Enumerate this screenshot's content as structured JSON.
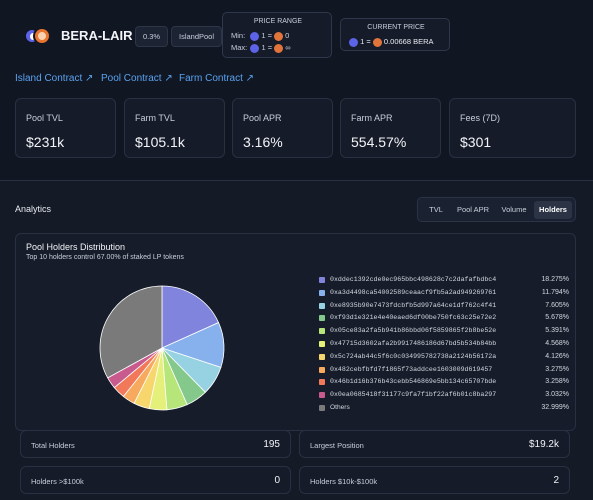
{
  "header": {
    "name": "BERA-LAIR",
    "fee": "0.3%",
    "pool_type": "IslandPool",
    "price_range": {
      "title": "PRICE RANGE",
      "min_label": "Min:",
      "min_value": "1 = ",
      "min_result": "0",
      "max_label": "Max:",
      "max_value": "1 = ",
      "max_result": "∞"
    },
    "current_price": {
      "title": "CURRENT PRICE",
      "value": "1 = ",
      "result": "0.00668 BERA"
    }
  },
  "links": [
    {
      "label": "Island Contract ↗"
    },
    {
      "label": "Pool Contract ↗"
    },
    {
      "label": "Farm Contract ↗"
    }
  ],
  "stats": [
    {
      "label": "Pool TVL",
      "value": "$231k"
    },
    {
      "label": "Farm TVL",
      "value": "$105.1k"
    },
    {
      "label": "Pool APR",
      "value": "3.16%"
    },
    {
      "label": "Farm APR",
      "value": "554.57%"
    },
    {
      "label": "Fees (7D)",
      "value": "$301"
    }
  ],
  "analytics": {
    "title": "Analytics",
    "tabs": [
      {
        "label": "TVL",
        "active": false
      },
      {
        "label": "Pool APR",
        "active": false
      },
      {
        "label": "Volume",
        "active": false
      },
      {
        "label": "Holders",
        "active": true
      }
    ]
  },
  "distribution": {
    "title": "Pool Holders Distribution",
    "subtitle": "Top 10 holders control 67.00% of staked LP tokens"
  },
  "chart_data": {
    "type": "pie",
    "categories": [
      "0xddec1392cde0ec965bbc498628c7c2dafafbdbc4",
      "0xa3d4498ca54002589ceaacf9fb5a2ad949269761",
      "0xe8935b90e7473fdcbfb5d997a64ce1df762c4f41",
      "0xf93d1e321e4e40eaed6df00be750fc63c25e72e2",
      "0x05ce83a2fa5b941b86bbd06f5859865f2b8be52e",
      "0x47715d3602afa2b9917486186d67bd5b534b84bb",
      "0x5c724ab44c5f6c0c034995782738a2124b56172a",
      "0x482cebfbfd7f1865f73addcee1603009d619457",
      "0x46b1d16b376b43cebb546869e5bb134c65707bde",
      "0x0ea0685418f31177c9fa7f1bf22af6b01c8ba297",
      "Others"
    ],
    "values": [
      18.275,
      11.794,
      7.605,
      5.678,
      5.391,
      4.568,
      4.126,
      3.275,
      3.258,
      3.032,
      32.999
    ],
    "labels": [
      "18.275%",
      "11.794%",
      "7.605%",
      "5.678%",
      "5.391%",
      "4.568%",
      "4.126%",
      "3.275%",
      "3.258%",
      "3.032%",
      "32.999%"
    ],
    "colors": [
      "#8084dc",
      "#86b1ec",
      "#97d2e3",
      "#84c98b",
      "#b6e57a",
      "#e5f07a",
      "#f7d66d",
      "#f7a95e",
      "#f2785a",
      "#c85a8e",
      "#7a7a7a"
    ],
    "legend": "right"
  },
  "summary": [
    {
      "label": "Total Holders",
      "value": "195"
    },
    {
      "label": "Largest Position",
      "value": "$19.2k"
    },
    {
      "label": "Holders >$100k",
      "value": "0"
    },
    {
      "label": "Holders $10k-$100k",
      "value": "2"
    }
  ]
}
